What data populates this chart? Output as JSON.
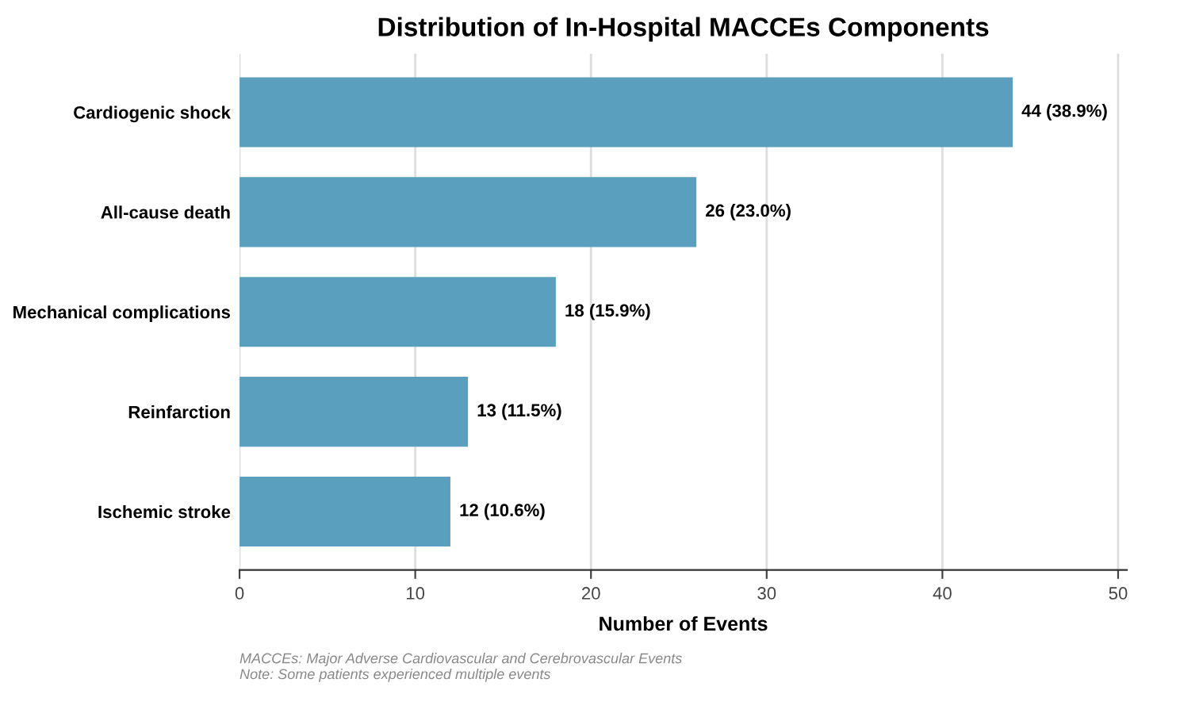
{
  "chart_data": {
    "type": "bar",
    "orientation": "horizontal",
    "title": "Distribution of In-Hospital MACCEs Components",
    "xlabel": "Number of Events",
    "categories": [
      "Cardiogenic shock",
      "All-cause death",
      "Mechanical complications",
      "Reinfarction",
      "Ischemic stroke"
    ],
    "values": [
      44,
      26,
      18,
      13,
      12
    ],
    "value_labels": [
      "44 (38.9%)",
      "26 (23.0%)",
      "18 (15.9%)",
      "13 (11.5%)",
      "12 (10.6%)"
    ],
    "color": "#5a9fbe",
    "xlim": [
      0,
      50.5
    ],
    "xticks": [
      0,
      10,
      20,
      30,
      40,
      50
    ],
    "grid": "x",
    "legend": false,
    "annotations": [
      "MACCEs: Major Adverse Cardiovascular and Cerebrovascular Events",
      "Note: Some patients experienced multiple events"
    ]
  }
}
